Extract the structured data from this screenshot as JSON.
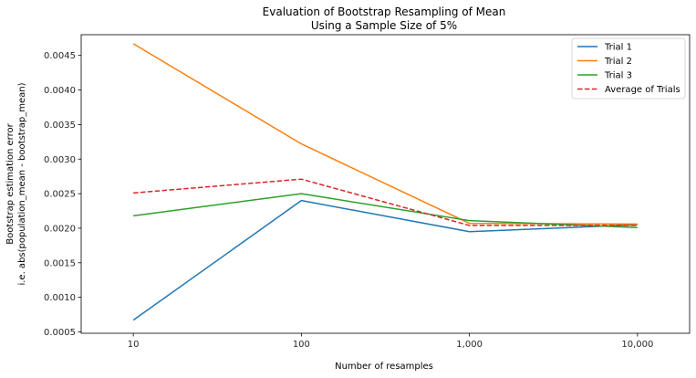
{
  "chart_data": {
    "type": "line",
    "title": "Evaluation of Bootstrap Resampling of Mean",
    "subtitle": "Using a Sample Size of 5%",
    "xlabel": "Number of resamples",
    "ylabel_line1": "Bootstrap estimation error",
    "ylabel_line2": "i.e. abs(population_mean - bootstrap_mean)",
    "x_scale": "log",
    "x": [
      10,
      100,
      1000,
      10000
    ],
    "x_tick_labels": [
      "10",
      "100",
      "1,000",
      "10,000"
    ],
    "ylim": [
      0.00048,
      0.0048
    ],
    "y_ticks": [
      0.0005,
      0.001,
      0.0015,
      0.002,
      0.0025,
      0.003,
      0.0035,
      0.004,
      0.0045
    ],
    "y_tick_labels": [
      "0.0005",
      "0.0010",
      "0.0015",
      "0.0020",
      "0.0025",
      "0.0030",
      "0.0035",
      "0.0040",
      "0.0045"
    ],
    "grid": false,
    "legend_position": "top-right",
    "series": [
      {
        "name": "Trial 1",
        "values": [
          0.00067,
          0.0024,
          0.00195,
          0.00205
        ],
        "color": "#1f77b4",
        "style": "solid"
      },
      {
        "name": "Trial 2",
        "values": [
          0.00467,
          0.00322,
          0.00207,
          0.00206
        ],
        "color": "#ff7f0e",
        "style": "solid"
      },
      {
        "name": "Trial 3",
        "values": [
          0.00218,
          0.0025,
          0.00211,
          0.00201
        ],
        "color": "#2ca02c",
        "style": "solid"
      },
      {
        "name": "Average of Trials",
        "values": [
          0.00251,
          0.00271,
          0.00204,
          0.00204
        ],
        "color": "#d62728",
        "style": "dashed"
      }
    ]
  }
}
